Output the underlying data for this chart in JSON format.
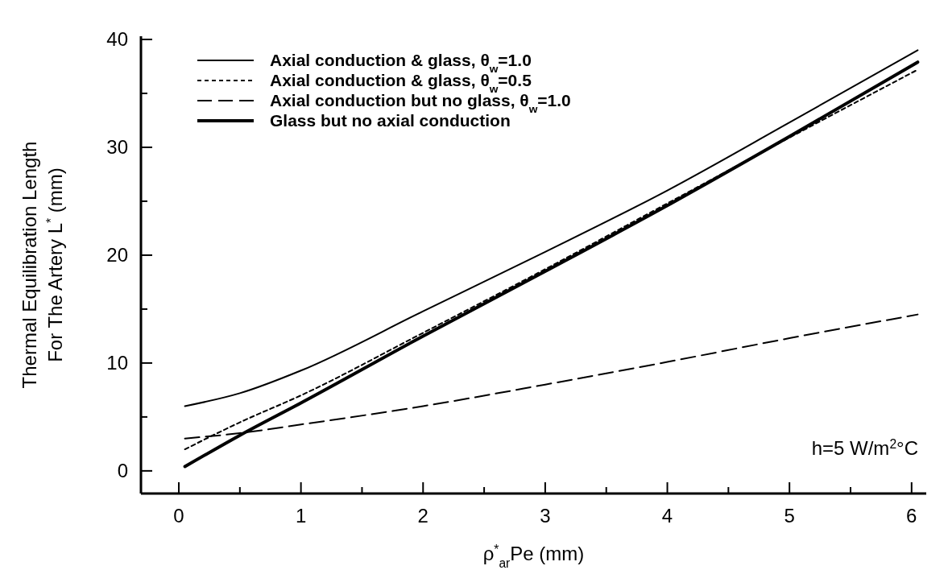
{
  "chart_data": {
    "type": "line",
    "xlabel": "ρ$^{*}$$_{ar}$Pe (mm)",
    "ylabel": "Thermal Equilibration Length\nFor The Artery L$^{*}$ (mm)",
    "x": [
      0.05,
      0.5,
      1,
      2,
      3,
      4,
      5,
      6.05
    ],
    "series": [
      {
        "name": "Axial conduction & glass, θ$_{w}$=1.0",
        "color": "#000000",
        "line_style": "solid",
        "values": [
          6.0,
          7.2,
          9.3,
          14.8,
          20.3,
          26.0,
          32.3,
          39.0
        ]
      },
      {
        "name": "Axial conduction & glass, θ$_{w}$=0.5",
        "color": "#000000",
        "line_style": "dotted",
        "values": [
          2.0,
          4.5,
          7.0,
          12.8,
          18.7,
          24.8,
          30.9,
          37.2
        ]
      },
      {
        "name": "Axial conduction but no glass, θ$_{w}$=1.0",
        "color": "#000000",
        "line_style": "dashed",
        "values": [
          3.0,
          3.5,
          4.3,
          6.0,
          8.0,
          10.1,
          12.3,
          14.5
        ]
      },
      {
        "name": "Glass but no axial conduction",
        "color": "#000000",
        "line_style": "solid",
        "values": [
          0.4,
          3.3,
          6.3,
          12.5,
          18.5,
          24.6,
          31.0,
          37.9
        ]
      }
    ],
    "xlim": [
      -0.31,
      6.12
    ],
    "ylim": [
      -2.1,
      40.3
    ],
    "xticks": [
      0,
      {
        "value": 0.5,
        "label": null
      },
      1,
      {
        "value": 1.5,
        "label": null
      },
      2,
      {
        "value": 2.5,
        "label": null
      },
      3,
      {
        "value": 3.5,
        "label": null
      },
      4,
      {
        "value": 4.5,
        "label": null
      },
      5,
      {
        "value": 5.5,
        "label": null
      },
      6
    ],
    "yticks": [
      0,
      {
        "value": 5,
        "label": null
      },
      10,
      {
        "value": 15,
        "label": null
      },
      20,
      {
        "value": 25,
        "label": null
      },
      30,
      {
        "value": 35,
        "label": null
      },
      40
    ],
    "annotations": [
      "h=5 W/m$^{2}$°C"
    ],
    "legend": "top left",
    "grid": false,
    "marker": "none"
  }
}
